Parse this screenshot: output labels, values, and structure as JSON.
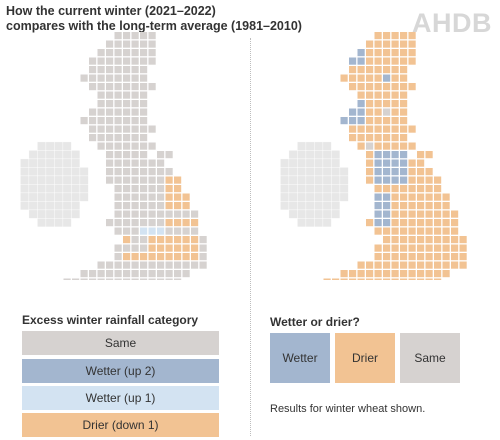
{
  "header": {
    "title_line1": "How the current winter (2021–2022)",
    "title_line2": "compares with the long-term average (1981–2010)",
    "logo_text": "AHDB"
  },
  "colors": {
    "same": "#d6d2d0",
    "wetter_up_2": "#a3b6cf",
    "wetter_up_1": "#d3e3f2",
    "drier_down_1": "#f2c393",
    "ireland": "#e7e7e7"
  },
  "left_panel": {
    "map": "Excess winter rainfall category by grid square",
    "legend_heading": "Excess winter rainfall category",
    "legend": [
      {
        "label": "Same",
        "category": "same"
      },
      {
        "label": "Wetter (up 2)",
        "category": "wetter_up_2"
      },
      {
        "label": "Wetter (up 1)",
        "category": "wetter_up_1"
      },
      {
        "label": "Drier (down 1)",
        "category": "drier_down_1"
      }
    ]
  },
  "right_panel": {
    "map": "Wetter or drier by grid square",
    "legend_heading": "Wetter or drier?",
    "legend": [
      {
        "label": "Wetter",
        "category": "wetter_up_2"
      },
      {
        "label": "Drier",
        "category": "drier_down_1"
      },
      {
        "label": "Same",
        "category": "same"
      }
    ],
    "note": "Results for winter wheat shown."
  }
}
